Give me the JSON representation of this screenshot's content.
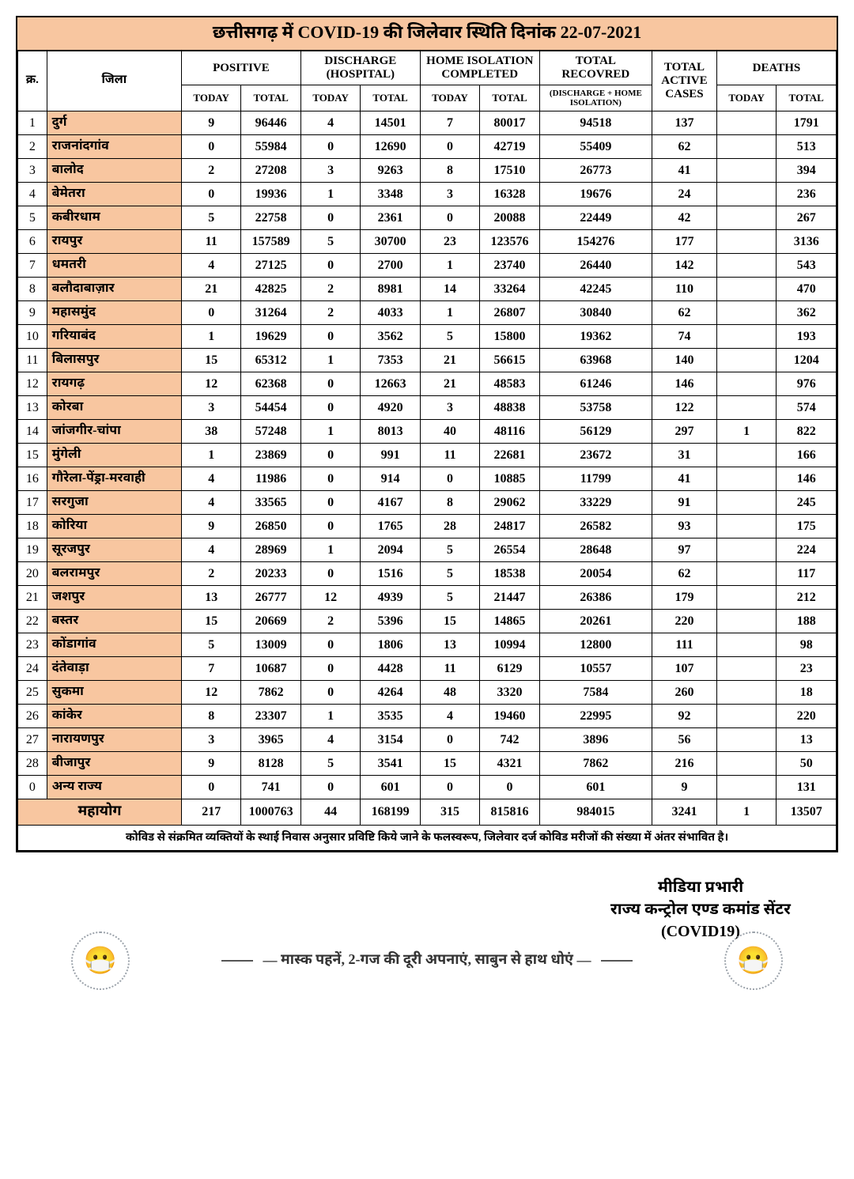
{
  "title": "छत्तीसगढ़ में COVID-19 की जिलेवार स्थिति दिनांक 22-07-2021",
  "headers": {
    "sno": "क्र.",
    "district": "जिला",
    "positive": "POSITIVE",
    "discharge": "DISCHARGE (HOSPITAL)",
    "homeiso": "HOME ISOLATION COMPLETED",
    "totrec": "TOTAL RECOVRED",
    "totrec_sub": "(DISCHARGE + HOME ISOLATION)",
    "active": "TOTAL ACTIVE CASES",
    "deaths": "DEATHS",
    "today": "TODAY",
    "total": "TOTAL"
  },
  "rows": [
    {
      "sno": "1",
      "district": "दुर्ग",
      "pt": "9",
      "pT": "96446",
      "dt": "4",
      "dT": "14501",
      "ht": "7",
      "hT": "80017",
      "rec": "94518",
      "act": "137",
      "det": "",
      "deT": "1791"
    },
    {
      "sno": "2",
      "district": "राजनांदगांव",
      "pt": "0",
      "pT": "55984",
      "dt": "0",
      "dT": "12690",
      "ht": "0",
      "hT": "42719",
      "rec": "55409",
      "act": "62",
      "det": "",
      "deT": "513"
    },
    {
      "sno": "3",
      "district": "बालोद",
      "pt": "2",
      "pT": "27208",
      "dt": "3",
      "dT": "9263",
      "ht": "8",
      "hT": "17510",
      "rec": "26773",
      "act": "41",
      "det": "",
      "deT": "394"
    },
    {
      "sno": "4",
      "district": "बेमेतरा",
      "pt": "0",
      "pT": "19936",
      "dt": "1",
      "dT": "3348",
      "ht": "3",
      "hT": "16328",
      "rec": "19676",
      "act": "24",
      "det": "",
      "deT": "236"
    },
    {
      "sno": "5",
      "district": "कबीरधाम",
      "pt": "5",
      "pT": "22758",
      "dt": "0",
      "dT": "2361",
      "ht": "0",
      "hT": "20088",
      "rec": "22449",
      "act": "42",
      "det": "",
      "deT": "267"
    },
    {
      "sno": "6",
      "district": "रायपुर",
      "pt": "11",
      "pT": "157589",
      "dt": "5",
      "dT": "30700",
      "ht": "23",
      "hT": "123576",
      "rec": "154276",
      "act": "177",
      "det": "",
      "deT": "3136"
    },
    {
      "sno": "7",
      "district": "धमतरी",
      "pt": "4",
      "pT": "27125",
      "dt": "0",
      "dT": "2700",
      "ht": "1",
      "hT": "23740",
      "rec": "26440",
      "act": "142",
      "det": "",
      "deT": "543"
    },
    {
      "sno": "8",
      "district": "बलौदाबाज़ार",
      "pt": "21",
      "pT": "42825",
      "dt": "2",
      "dT": "8981",
      "ht": "14",
      "hT": "33264",
      "rec": "42245",
      "act": "110",
      "det": "",
      "deT": "470"
    },
    {
      "sno": "9",
      "district": "महासमुंद",
      "pt": "0",
      "pT": "31264",
      "dt": "2",
      "dT": "4033",
      "ht": "1",
      "hT": "26807",
      "rec": "30840",
      "act": "62",
      "det": "",
      "deT": "362"
    },
    {
      "sno": "10",
      "district": "गरियाबंद",
      "pt": "1",
      "pT": "19629",
      "dt": "0",
      "dT": "3562",
      "ht": "5",
      "hT": "15800",
      "rec": "19362",
      "act": "74",
      "det": "",
      "deT": "193"
    },
    {
      "sno": "11",
      "district": "बिलासपुर",
      "pt": "15",
      "pT": "65312",
      "dt": "1",
      "dT": "7353",
      "ht": "21",
      "hT": "56615",
      "rec": "63968",
      "act": "140",
      "det": "",
      "deT": "1204"
    },
    {
      "sno": "12",
      "district": "रायगढ़",
      "pt": "12",
      "pT": "62368",
      "dt": "0",
      "dT": "12663",
      "ht": "21",
      "hT": "48583",
      "rec": "61246",
      "act": "146",
      "det": "",
      "deT": "976"
    },
    {
      "sno": "13",
      "district": "कोरबा",
      "pt": "3",
      "pT": "54454",
      "dt": "0",
      "dT": "4920",
      "ht": "3",
      "hT": "48838",
      "rec": "53758",
      "act": "122",
      "det": "",
      "deT": "574"
    },
    {
      "sno": "14",
      "district": "जांजगीर-चांपा",
      "pt": "38",
      "pT": "57248",
      "dt": "1",
      "dT": "8013",
      "ht": "40",
      "hT": "48116",
      "rec": "56129",
      "act": "297",
      "det": "1",
      "deT": "822"
    },
    {
      "sno": "15",
      "district": "मुंगेली",
      "pt": "1",
      "pT": "23869",
      "dt": "0",
      "dT": "991",
      "ht": "11",
      "hT": "22681",
      "rec": "23672",
      "act": "31",
      "det": "",
      "deT": "166"
    },
    {
      "sno": "16",
      "district": "गौरेला-पेंड्रा-मरवाही",
      "pt": "4",
      "pT": "11986",
      "dt": "0",
      "dT": "914",
      "ht": "0",
      "hT": "10885",
      "rec": "11799",
      "act": "41",
      "det": "",
      "deT": "146"
    },
    {
      "sno": "17",
      "district": "सरगुजा",
      "pt": "4",
      "pT": "33565",
      "dt": "0",
      "dT": "4167",
      "ht": "8",
      "hT": "29062",
      "rec": "33229",
      "act": "91",
      "det": "",
      "deT": "245"
    },
    {
      "sno": "18",
      "district": "कोरिया",
      "pt": "9",
      "pT": "26850",
      "dt": "0",
      "dT": "1765",
      "ht": "28",
      "hT": "24817",
      "rec": "26582",
      "act": "93",
      "det": "",
      "deT": "175"
    },
    {
      "sno": "19",
      "district": "सूरजपुर",
      "pt": "4",
      "pT": "28969",
      "dt": "1",
      "dT": "2094",
      "ht": "5",
      "hT": "26554",
      "rec": "28648",
      "act": "97",
      "det": "",
      "deT": "224"
    },
    {
      "sno": "20",
      "district": "बलरामपुर",
      "pt": "2",
      "pT": "20233",
      "dt": "0",
      "dT": "1516",
      "ht": "5",
      "hT": "18538",
      "rec": "20054",
      "act": "62",
      "det": "",
      "deT": "117"
    },
    {
      "sno": "21",
      "district": "जशपुर",
      "pt": "13",
      "pT": "26777",
      "dt": "12",
      "dT": "4939",
      "ht": "5",
      "hT": "21447",
      "rec": "26386",
      "act": "179",
      "det": "",
      "deT": "212"
    },
    {
      "sno": "22",
      "district": "बस्तर",
      "pt": "15",
      "pT": "20669",
      "dt": "2",
      "dT": "5396",
      "ht": "15",
      "hT": "14865",
      "rec": "20261",
      "act": "220",
      "det": "",
      "deT": "188"
    },
    {
      "sno": "23",
      "district": "कोंडागांव",
      "pt": "5",
      "pT": "13009",
      "dt": "0",
      "dT": "1806",
      "ht": "13",
      "hT": "10994",
      "rec": "12800",
      "act": "111",
      "det": "",
      "deT": "98"
    },
    {
      "sno": "24",
      "district": "दंतेवाड़ा",
      "pt": "7",
      "pT": "10687",
      "dt": "0",
      "dT": "4428",
      "ht": "11",
      "hT": "6129",
      "rec": "10557",
      "act": "107",
      "det": "",
      "deT": "23"
    },
    {
      "sno": "25",
      "district": "सुकमा",
      "pt": "12",
      "pT": "7862",
      "dt": "0",
      "dT": "4264",
      "ht": "48",
      "hT": "3320",
      "rec": "7584",
      "act": "260",
      "det": "",
      "deT": "18"
    },
    {
      "sno": "26",
      "district": "कांकेर",
      "pt": "8",
      "pT": "23307",
      "dt": "1",
      "dT": "3535",
      "ht": "4",
      "hT": "19460",
      "rec": "22995",
      "act": "92",
      "det": "",
      "deT": "220"
    },
    {
      "sno": "27",
      "district": "नारायणपुर",
      "pt": "3",
      "pT": "3965",
      "dt": "4",
      "dT": "3154",
      "ht": "0",
      "hT": "742",
      "rec": "3896",
      "act": "56",
      "det": "",
      "deT": "13"
    },
    {
      "sno": "28",
      "district": "बीजापुर",
      "pt": "9",
      "pT": "8128",
      "dt": "5",
      "dT": "3541",
      "ht": "15",
      "hT": "4321",
      "rec": "7862",
      "act": "216",
      "det": "",
      "deT": "50"
    },
    {
      "sno": "0",
      "district": "अन्य राज्य",
      "pt": "0",
      "pT": "741",
      "dt": "0",
      "dT": "601",
      "ht": "0",
      "hT": "0",
      "rec": "601",
      "act": "9",
      "det": "",
      "deT": "131"
    }
  ],
  "grand": {
    "label": "महायोग",
    "pt": "217",
    "pT": "1000763",
    "dt": "44",
    "dT": "168199",
    "ht": "315",
    "hT": "815816",
    "rec": "984015",
    "act": "3241",
    "det": "1",
    "deT": "13507"
  },
  "footnote": "कोविड से संक्रमित व्यक्तियों के स्थाई निवास अनुसार प्रविष्टि किये जाने के फलस्वरूप, जिलेवार दर्ज कोविड मरीजों की संख्या में अंतर संभावित है।",
  "footer": {
    "line1": "मीडिया प्रभारी",
    "line2": "राज्य कन्ट्रोल एण्ड कमांड सेंटर",
    "line3": "(COVID19)",
    "slogan": "मास्क पहनें, 2-गज की दूरी अपनाएं, साबुन से हाथ धोएं"
  }
}
